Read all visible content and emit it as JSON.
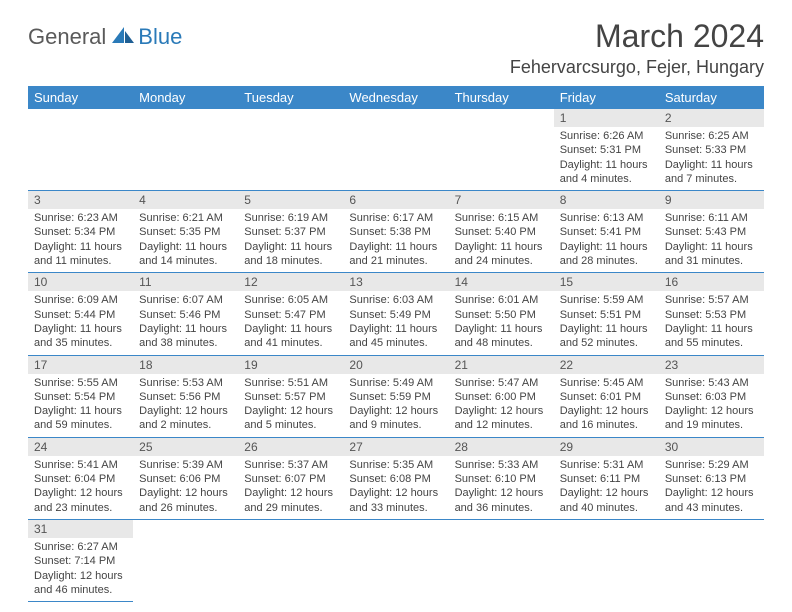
{
  "logo": {
    "word1": "General",
    "word2": "Blue"
  },
  "title": "March 2024",
  "location": "Fehervarcsurgo, Fejer, Hungary",
  "header_bg": "#3b87c8",
  "header_fg": "#ffffff",
  "daynum_bg": "#e8e8e8",
  "cell_border": "#3b87c8",
  "weekdays": [
    "Sunday",
    "Monday",
    "Tuesday",
    "Wednesday",
    "Thursday",
    "Friday",
    "Saturday"
  ],
  "first_weekday": 5,
  "days": [
    {
      "n": "1",
      "sunrise": "6:26 AM",
      "sunset": "5:31 PM",
      "daylight": "11 hours and 4 minutes."
    },
    {
      "n": "2",
      "sunrise": "6:25 AM",
      "sunset": "5:33 PM",
      "daylight": "11 hours and 7 minutes."
    },
    {
      "n": "3",
      "sunrise": "6:23 AM",
      "sunset": "5:34 PM",
      "daylight": "11 hours and 11 minutes."
    },
    {
      "n": "4",
      "sunrise": "6:21 AM",
      "sunset": "5:35 PM",
      "daylight": "11 hours and 14 minutes."
    },
    {
      "n": "5",
      "sunrise": "6:19 AM",
      "sunset": "5:37 PM",
      "daylight": "11 hours and 18 minutes."
    },
    {
      "n": "6",
      "sunrise": "6:17 AM",
      "sunset": "5:38 PM",
      "daylight": "11 hours and 21 minutes."
    },
    {
      "n": "7",
      "sunrise": "6:15 AM",
      "sunset": "5:40 PM",
      "daylight": "11 hours and 24 minutes."
    },
    {
      "n": "8",
      "sunrise": "6:13 AM",
      "sunset": "5:41 PM",
      "daylight": "11 hours and 28 minutes."
    },
    {
      "n": "9",
      "sunrise": "6:11 AM",
      "sunset": "5:43 PM",
      "daylight": "11 hours and 31 minutes."
    },
    {
      "n": "10",
      "sunrise": "6:09 AM",
      "sunset": "5:44 PM",
      "daylight": "11 hours and 35 minutes."
    },
    {
      "n": "11",
      "sunrise": "6:07 AM",
      "sunset": "5:46 PM",
      "daylight": "11 hours and 38 minutes."
    },
    {
      "n": "12",
      "sunrise": "6:05 AM",
      "sunset": "5:47 PM",
      "daylight": "11 hours and 41 minutes."
    },
    {
      "n": "13",
      "sunrise": "6:03 AM",
      "sunset": "5:49 PM",
      "daylight": "11 hours and 45 minutes."
    },
    {
      "n": "14",
      "sunrise": "6:01 AM",
      "sunset": "5:50 PM",
      "daylight": "11 hours and 48 minutes."
    },
    {
      "n": "15",
      "sunrise": "5:59 AM",
      "sunset": "5:51 PM",
      "daylight": "11 hours and 52 minutes."
    },
    {
      "n": "16",
      "sunrise": "5:57 AM",
      "sunset": "5:53 PM",
      "daylight": "11 hours and 55 minutes."
    },
    {
      "n": "17",
      "sunrise": "5:55 AM",
      "sunset": "5:54 PM",
      "daylight": "11 hours and 59 minutes."
    },
    {
      "n": "18",
      "sunrise": "5:53 AM",
      "sunset": "5:56 PM",
      "daylight": "12 hours and 2 minutes."
    },
    {
      "n": "19",
      "sunrise": "5:51 AM",
      "sunset": "5:57 PM",
      "daylight": "12 hours and 5 minutes."
    },
    {
      "n": "20",
      "sunrise": "5:49 AM",
      "sunset": "5:59 PM",
      "daylight": "12 hours and 9 minutes."
    },
    {
      "n": "21",
      "sunrise": "5:47 AM",
      "sunset": "6:00 PM",
      "daylight": "12 hours and 12 minutes."
    },
    {
      "n": "22",
      "sunrise": "5:45 AM",
      "sunset": "6:01 PM",
      "daylight": "12 hours and 16 minutes."
    },
    {
      "n": "23",
      "sunrise": "5:43 AM",
      "sunset": "6:03 PM",
      "daylight": "12 hours and 19 minutes."
    },
    {
      "n": "24",
      "sunrise": "5:41 AM",
      "sunset": "6:04 PM",
      "daylight": "12 hours and 23 minutes."
    },
    {
      "n": "25",
      "sunrise": "5:39 AM",
      "sunset": "6:06 PM",
      "daylight": "12 hours and 26 minutes."
    },
    {
      "n": "26",
      "sunrise": "5:37 AM",
      "sunset": "6:07 PM",
      "daylight": "12 hours and 29 minutes."
    },
    {
      "n": "27",
      "sunrise": "5:35 AM",
      "sunset": "6:08 PM",
      "daylight": "12 hours and 33 minutes."
    },
    {
      "n": "28",
      "sunrise": "5:33 AM",
      "sunset": "6:10 PM",
      "daylight": "12 hours and 36 minutes."
    },
    {
      "n": "29",
      "sunrise": "5:31 AM",
      "sunset": "6:11 PM",
      "daylight": "12 hours and 40 minutes."
    },
    {
      "n": "30",
      "sunrise": "5:29 AM",
      "sunset": "6:13 PM",
      "daylight": "12 hours and 43 minutes."
    },
    {
      "n": "31",
      "sunrise": "6:27 AM",
      "sunset": "7:14 PM",
      "daylight": "12 hours and 46 minutes."
    }
  ],
  "labels": {
    "sunrise": "Sunrise:",
    "sunset": "Sunset:",
    "daylight": "Daylight:"
  }
}
